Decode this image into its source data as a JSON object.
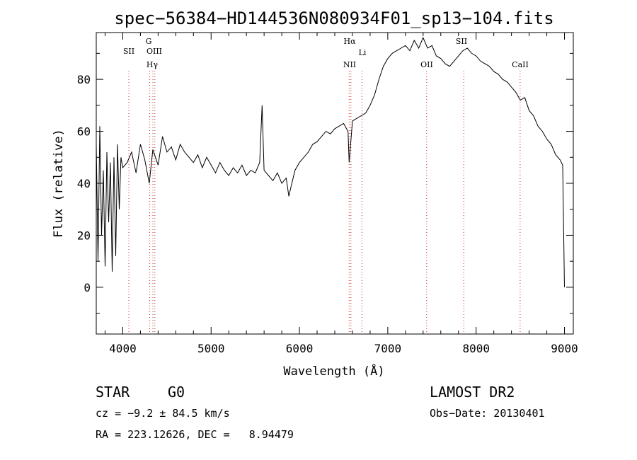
{
  "chart_data": {
    "type": "line",
    "title": "spec−56384−HD144536N080934F01_sp13−104.fits",
    "xlabel": "Wavelength (Å)",
    "ylabel": "Flux (relative)",
    "xlim": [
      3700,
      9100
    ],
    "ylim": [
      -18,
      98
    ],
    "x_ticks": [
      4000,
      5000,
      6000,
      7000,
      8000,
      9000
    ],
    "x_tick_labels": [
      "4000",
      "5000",
      "6000",
      "7000",
      "8000",
      "9000"
    ],
    "y_ticks": [
      0,
      20,
      40,
      60,
      80
    ],
    "y_tick_labels": [
      "0",
      "20",
      "40",
      "60",
      "80"
    ],
    "grid": false,
    "line_color": "#000000",
    "marker_color": "#cc2222",
    "series": [
      {
        "x": [
          3700,
          3720,
          3740,
          3760,
          3780,
          3800,
          3820,
          3840,
          3860,
          3880,
          3900,
          3920,
          3940,
          3960,
          3980,
          4000,
          4050,
          4100,
          4150,
          4200,
          4250,
          4300,
          4340,
          4400,
          4450,
          4500,
          4550,
          4600,
          4650,
          4700,
          4750,
          4800,
          4850,
          4900,
          4950,
          5000,
          5050,
          5100,
          5150,
          5200,
          5250,
          5300,
          5350,
          5400,
          5450,
          5500,
          5550,
          5577,
          5600,
          5650,
          5700,
          5750,
          5800,
          5850,
          5880,
          5900,
          5950,
          6000,
          6050,
          6100,
          6150,
          6200,
          6250,
          6300,
          6350,
          6400,
          6450,
          6500,
          6550,
          6563,
          6600,
          6650,
          6700,
          6750,
          6800,
          6850,
          6900,
          6950,
          7000,
          7050,
          7100,
          7150,
          7200,
          7250,
          7300,
          7350,
          7400,
          7450,
          7500,
          7550,
          7600,
          7650,
          7700,
          7750,
          7800,
          7850,
          7900,
          7950,
          8000,
          8050,
          8100,
          8150,
          8200,
          8250,
          8300,
          8350,
          8400,
          8450,
          8500,
          8550,
          8600,
          8650,
          8700,
          8750,
          8800,
          8850,
          8900,
          8950,
          8980,
          9000
        ],
        "y": [
          55,
          10,
          62,
          20,
          45,
          8,
          52,
          25,
          48,
          6,
          50,
          12,
          55,
          30,
          50,
          46,
          48,
          52,
          44,
          55,
          49,
          40,
          53,
          47,
          58,
          52,
          54,
          49,
          55,
          52,
          50,
          48,
          51,
          46,
          50,
          47,
          44,
          48,
          45,
          43,
          46,
          44,
          47,
          43,
          45,
          44,
          48,
          70,
          45,
          43,
          41,
          44,
          40,
          42,
          35,
          38,
          45,
          48,
          50,
          52,
          55,
          56,
          58,
          60,
          59,
          61,
          62,
          63,
          60,
          48,
          64,
          65,
          66,
          67,
          70,
          74,
          80,
          85,
          88,
          90,
          91,
          92,
          93,
          91,
          95,
          92,
          96,
          92,
          93,
          89,
          88,
          86,
          85,
          87,
          89,
          91,
          92,
          90,
          89,
          87,
          86,
          85,
          83,
          82,
          80,
          79,
          77,
          75,
          72,
          73,
          68,
          66,
          62,
          60,
          57,
          55,
          51,
          49,
          47,
          0
        ]
      }
    ],
    "line_markers": [
      {
        "label": "SII",
        "x": 4069
      },
      {
        "label": "G",
        "x": 4304
      },
      {
        "label": "OIII",
        "x": 4363
      },
      {
        "label": "Hγ",
        "x": 4341
      },
      {
        "label": "Hα",
        "x": 6563
      },
      {
        "label": "NII",
        "x": 6583
      },
      {
        "label": "Li",
        "x": 6708
      },
      {
        "label": "OII",
        "x": 7440
      },
      {
        "label": "SII",
        "x": 7860
      },
      {
        "label": "CaII",
        "x": 8498
      }
    ]
  },
  "info": {
    "object_class": "STAR",
    "subclass": "G0",
    "survey": "LAMOST DR2",
    "redshift_text": "cz = −9.2 ± 84.5 km/s",
    "obs_date_text": "Obs−Date: 20130401",
    "radec_text": "RA = 223.12626, DEC =   8.94479"
  }
}
